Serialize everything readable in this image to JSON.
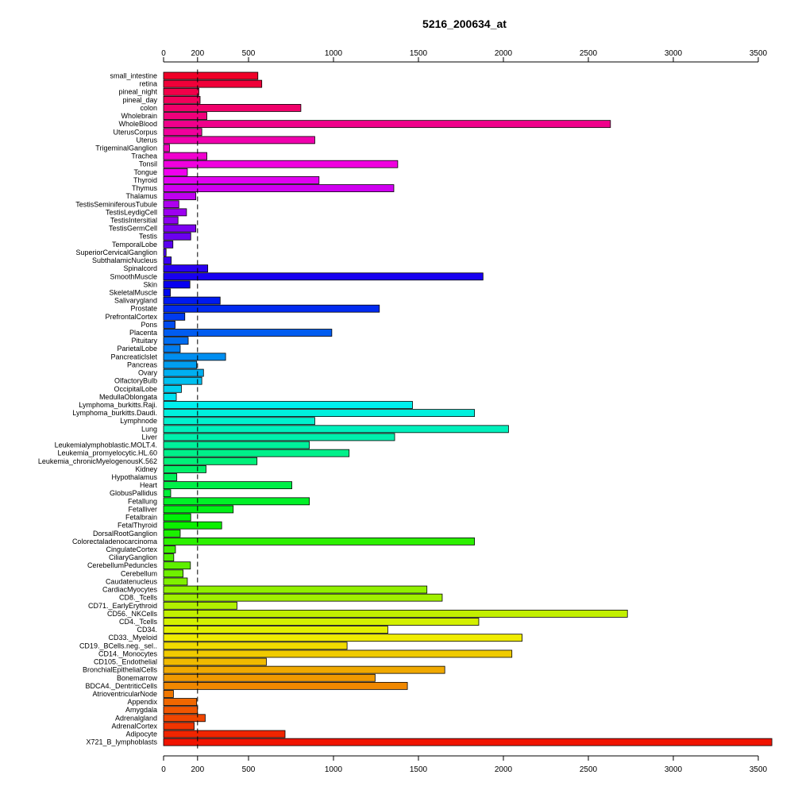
{
  "chart_data": {
    "type": "bar",
    "orientation": "horizontal",
    "title": "5216_200634_at",
    "xlabel": "",
    "ylabel": "",
    "xlim": [
      0,
      3500
    ],
    "x_ticks": [
      0,
      200,
      500,
      1000,
      1500,
      2000,
      2500,
      3000,
      3500
    ],
    "x_tick_labels": [
      "0",
      "200",
      "500",
      "1000",
      "1500",
      "2000",
      "2500",
      "3000",
      "3500"
    ],
    "reference_line": 200,
    "axes": "top and bottom",
    "grid": false,
    "legend": "none",
    "color_scheme": "rainbow (red to magenta to blue to green to yellow to red, top to bottom)",
    "categories": [
      "small_intestine",
      "retina",
      "pineal_night",
      "pineal_day",
      "colon",
      "Wholebrain",
      "WholeBlood",
      "UterusCorpus",
      "Uterus",
      "TrigeminalGanglion",
      "Trachea",
      "Tonsil",
      "Tongue",
      "Thyroid",
      "Thymus",
      "Thalamus",
      "TestisSeminiferousTubule",
      "TestisLeydigCell",
      "TestisIntersitial",
      "TestisGermCell",
      "Testis",
      "TemporalLobe",
      "SuperiorCervicalGanglion",
      "SubthalamicNucleus",
      "Spinalcord",
      "SmoothMuscle",
      "Skin",
      "SkeletalMuscle",
      "Salivarygland",
      "Prostate",
      "PrefrontalCortex",
      "Pons",
      "Placenta",
      "Pituitary",
      "ParietalLobe",
      "Pancreaticlslet",
      "Pancreas",
      "Ovary",
      "OlfactoryBulb",
      "OccipitalLobe",
      "MedullaOblongata",
      "Lymphoma_burkitts.Raji.",
      "Lymphoma_burkitts.Daudi.",
      "Lymphnode",
      "Lung",
      "Liver",
      "Leukemialymphoblastic.MOLT.4.",
      "Leukemia_promyelocytic.HL.60",
      "Leukemia_chronicMyelogenousK.562",
      "Kidney",
      "Hypothalamus",
      "Heart",
      "GlobusPallidus",
      "Fetallung",
      "Fetalliver",
      "Fetalbrain",
      "FetalThyroid",
      "DorsalRootGanglion",
      "Colorectaladenocarcinoma",
      "CingulateCortex",
      "CiliaryGanglion",
      "CerebellumPeduncles",
      "Cerebellum",
      "Caudatenucleus",
      "CardiacMyocytes",
      "CD8._Tcells",
      "CD71._EarlyErythroid",
      "CD56._NKCells",
      "CD4._Tcells",
      "CD34.",
      "CD33._Myeloid",
      "CD19._BCells.neg._sel..",
      "CD14._Monocytes",
      "CD105._Endothelial",
      "BronchialEpithelialCells",
      "Bonemarrow",
      "BDCA4._DentriticCells",
      "AtrioventricularNode",
      "Appendix",
      "Amygdala",
      "Adrenalgland",
      "AdrenalCortex",
      "Adipocyte",
      "X721_B_lymphoblasts"
    ],
    "values": [
      555,
      578,
      208,
      215,
      808,
      255,
      2630,
      225,
      890,
      35,
      255,
      1378,
      140,
      915,
      1355,
      190,
      90,
      135,
      85,
      190,
      160,
      55,
      15,
      45,
      260,
      1880,
      155,
      40,
      333,
      1270,
      125,
      68,
      990,
      145,
      98,
      365,
      195,
      235,
      225,
      105,
      75,
      1465,
      1830,
      890,
      2030,
      1360,
      858,
      1092,
      550,
      250,
      78,
      755,
      42,
      858,
      410,
      160,
      342,
      98,
      1830,
      70,
      60,
      158,
      115,
      140,
      1550,
      1640,
      432,
      2730,
      1855,
      1320,
      2110,
      1080,
      2050,
      605,
      1655,
      1245,
      1435,
      58,
      195,
      200,
      245,
      180,
      715,
      3580
    ]
  }
}
